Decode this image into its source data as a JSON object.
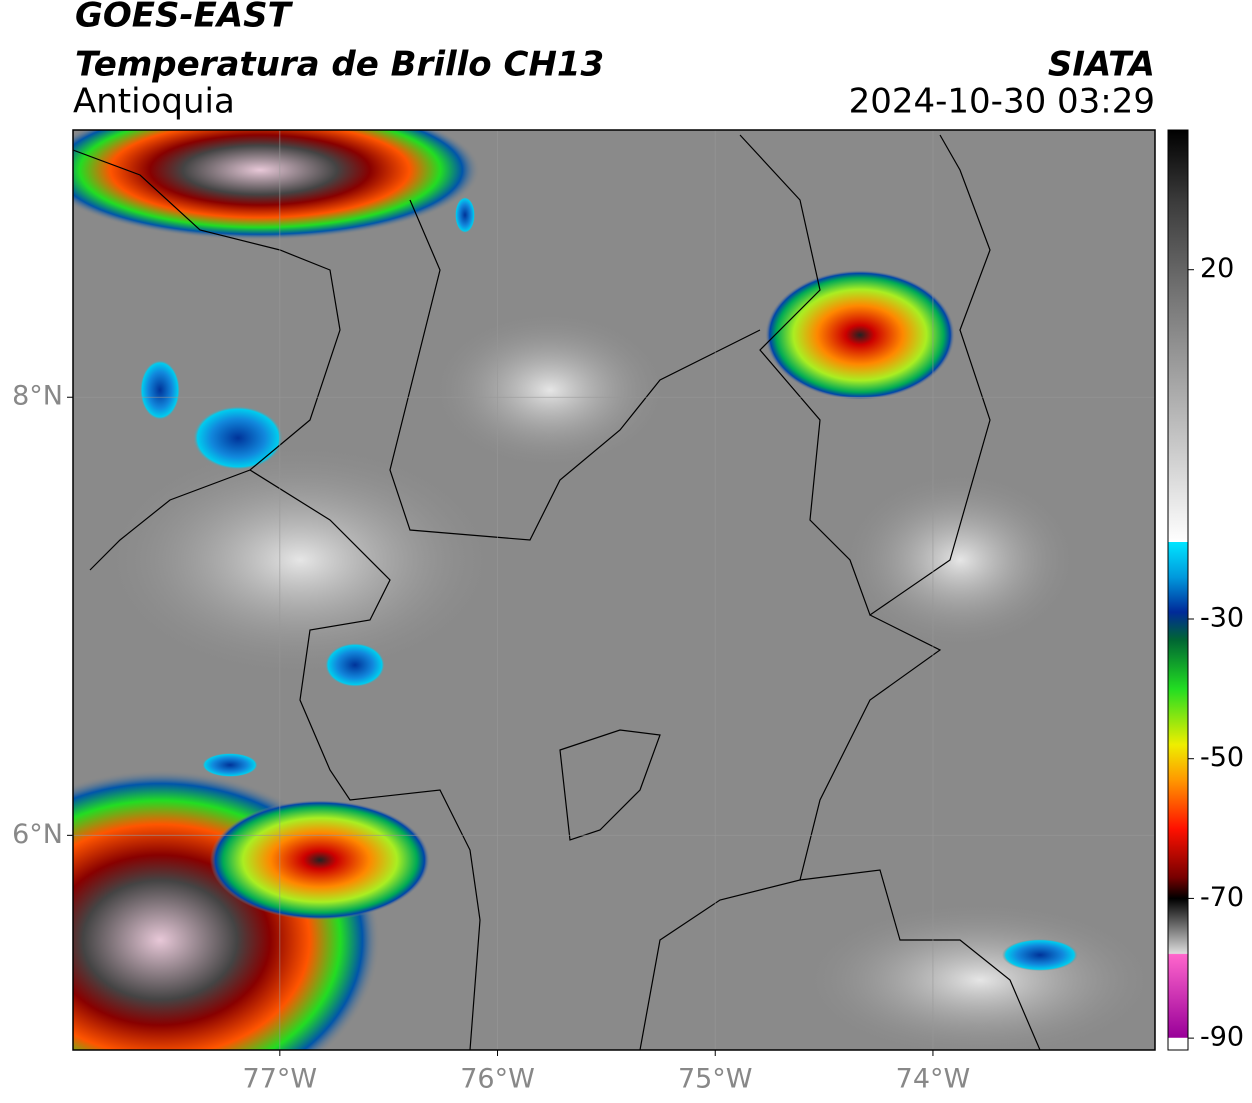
{
  "header": {
    "title": "GOES-EAST",
    "subtitle": "Temperatura de Brillo CH13",
    "region": "Antioquia",
    "source": "SIATA",
    "datetime": "2024-10-30 03:29"
  },
  "map": {
    "xlim": [
      -77.95,
      -72.98
    ],
    "ylim": [
      5.02,
      9.22
    ],
    "grid": true,
    "xticks": [
      {
        "value": -77,
        "label": "77°W"
      },
      {
        "value": -76,
        "label": "76°W"
      },
      {
        "value": -75,
        "label": "75°W"
      },
      {
        "value": -74,
        "label": "74°W"
      }
    ],
    "yticks": [
      {
        "value": 8,
        "label": "8°N"
      },
      {
        "value": 6,
        "label": "6°N"
      }
    ],
    "colorbar": {
      "clim": [
        -91.7,
        40
      ],
      "ticks": [
        20,
        -30,
        -50,
        -70,
        -90
      ],
      "stops": [
        {
          "value": 40,
          "color": "#000000"
        },
        {
          "value": 30,
          "color": "#3a3a3a"
        },
        {
          "value": 15,
          "color": "#7a7a7a"
        },
        {
          "value": 0,
          "color": "#b4b4b4"
        },
        {
          "value": -19,
          "color": "#ffffff"
        },
        {
          "value": -19.01,
          "color": "#00e5ff"
        },
        {
          "value": -24,
          "color": "#0099dd"
        },
        {
          "value": -29,
          "color": "#002a99"
        },
        {
          "value": -33,
          "color": "#006633"
        },
        {
          "value": -40,
          "color": "#22dd22"
        },
        {
          "value": -48,
          "color": "#eeee00"
        },
        {
          "value": -53,
          "color": "#ff9900"
        },
        {
          "value": -60,
          "color": "#ff1100"
        },
        {
          "value": -67,
          "color": "#770000"
        },
        {
          "value": -70,
          "color": "#000000"
        },
        {
          "value": -77.9,
          "color": "#dcdcdc"
        },
        {
          "value": -78,
          "color": "#ff66cc"
        },
        {
          "value": -89.9,
          "color": "#990099"
        },
        {
          "value": -90,
          "color": "#ffffff"
        },
        {
          "value": -91.7,
          "color": "#ffffff"
        }
      ]
    }
  }
}
